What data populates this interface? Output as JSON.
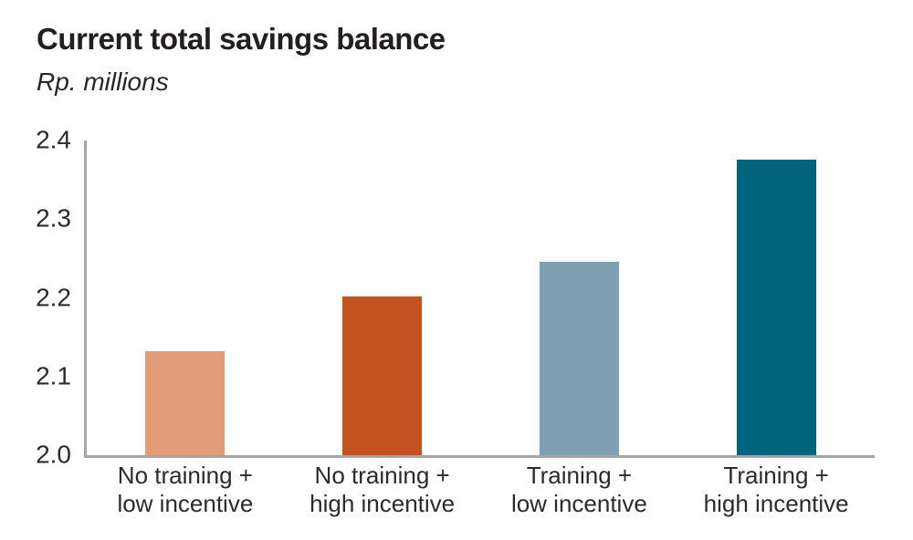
{
  "chart_data": {
    "type": "bar",
    "title": "Current total savings balance",
    "subtitle": "Rp. millions",
    "categories": [
      "No training + low incentive",
      "No training + high incentive",
      "Training + low incentive",
      "Training + high incentive"
    ],
    "category_lines": [
      [
        "No training +",
        "low incentive"
      ],
      [
        "No training +",
        "high incentive"
      ],
      [
        "Training +",
        "low incentive"
      ],
      [
        "Training +",
        "high incentive"
      ]
    ],
    "values": [
      2.132,
      2.202,
      2.246,
      2.376
    ],
    "bar_colors": [
      "#e19c77",
      "#c45122",
      "#7fa0b3",
      "#00657c"
    ],
    "xlabel": "",
    "ylabel": "",
    "ylim": [
      2.0,
      2.4
    ],
    "yticks": [
      2.0,
      2.1,
      2.2,
      2.3,
      2.4
    ],
    "ytick_decimals": 1,
    "grid": false,
    "legend_position": "none",
    "colors": {
      "axis": "#a5a5a5",
      "title_text": "#231f20",
      "subtitle_text": "#262626",
      "label_text": "#2b2b2b"
    }
  }
}
